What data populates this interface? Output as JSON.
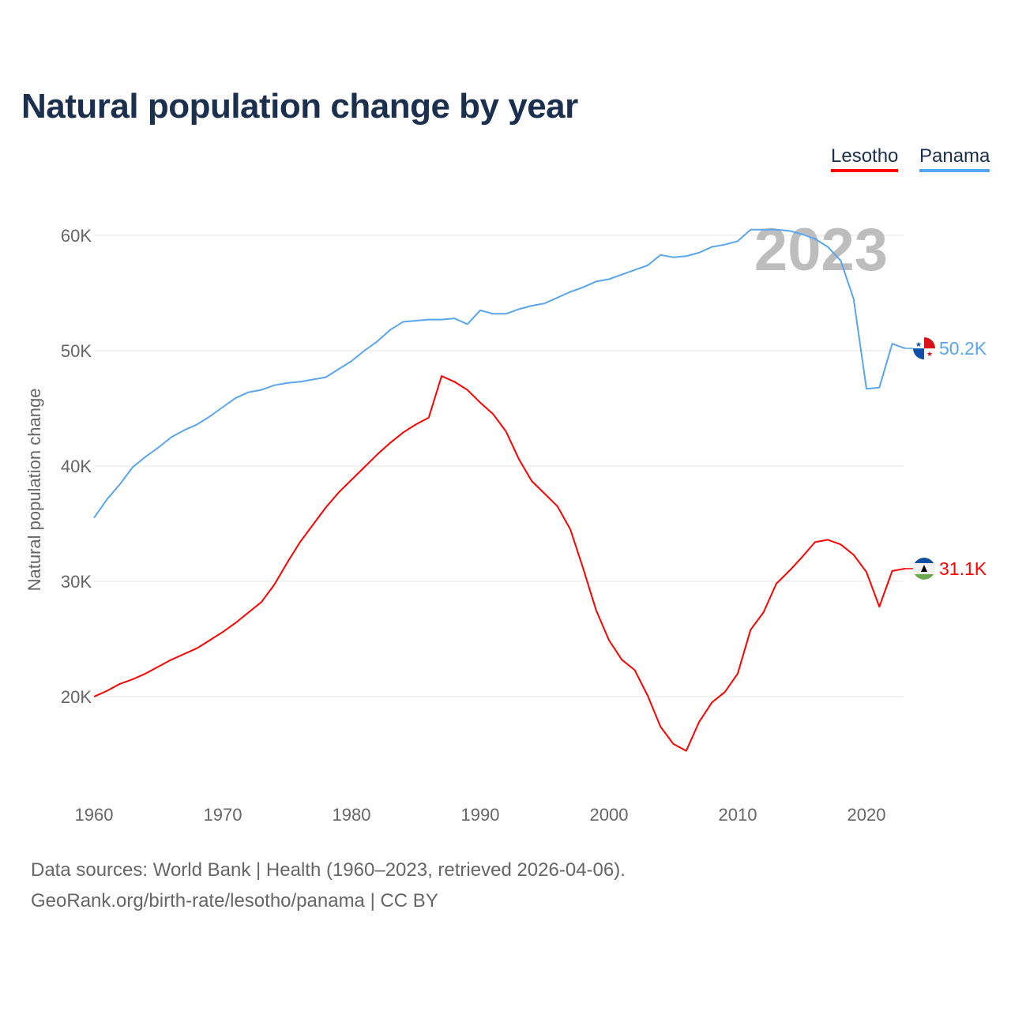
{
  "colors": {
    "Lesotho": "#ff0000",
    "Panama": "#5aa6ec",
    "title": "#1b2f4e"
  },
  "sources": {
    "line1": "Data sources: World Bank | Health (1960–2023, retrieved 2026-04-06).",
    "line2": "GeoRank.org/birth-rate/lesotho/panama | CC BY"
  },
  "chart_data": {
    "type": "line",
    "title": "Natural population change by year",
    "xlabel": "",
    "ylabel": "Natural population change",
    "year_watermark": "2023",
    "xlim": [
      1960,
      2023
    ],
    "ylim": [
      14000,
      62000
    ],
    "x_ticks": [
      1960,
      1970,
      1980,
      1990,
      2000,
      2010,
      2020
    ],
    "y_ticks": [
      {
        "v": 20000,
        "label": "20K"
      },
      {
        "v": 30000,
        "label": "30K"
      },
      {
        "v": 40000,
        "label": "40K"
      },
      {
        "v": 50000,
        "label": "50K"
      },
      {
        "v": 60000,
        "label": "60K"
      }
    ],
    "grid": true,
    "legend": "top-right",
    "x_start": 1960,
    "series": [
      {
        "name": "Lesotho",
        "end_label": "31.1K",
        "icon": "lesotho-flag-icon",
        "values": [
          20000,
          20500,
          21100,
          21500,
          22000,
          22600,
          23200,
          23700,
          24200,
          24900,
          25600,
          26400,
          27300,
          28200,
          29700,
          31600,
          33400,
          34900,
          36400,
          37700,
          38800,
          39900,
          41000,
          42000,
          42900,
          43600,
          44200,
          47800,
          47300,
          46600,
          45500,
          44500,
          43000,
          40600,
          38700,
          37600,
          36500,
          34500,
          31100,
          27500,
          24900,
          23200,
          22300,
          20100,
          17400,
          15900,
          15300,
          17800,
          19500,
          20400,
          22000,
          25800,
          27300,
          29800,
          30900,
          32100,
          33400,
          33600,
          33200,
          32300,
          30800,
          27800,
          30900,
          31100
        ]
      },
      {
        "name": "Panama",
        "end_label": "50.2K",
        "icon": "panama-flag-icon",
        "values": [
          35500,
          37100,
          38400,
          39900,
          40800,
          41600,
          42500,
          43100,
          43600,
          44300,
          45100,
          45900,
          46400,
          46600,
          47000,
          47200,
          47300,
          47500,
          47700,
          48400,
          49100,
          50000,
          50800,
          51800,
          52500,
          52600,
          52700,
          52700,
          52800,
          52300,
          53500,
          53200,
          53200,
          53600,
          53900,
          54100,
          54600,
          55100,
          55500,
          56000,
          56200,
          56600,
          57000,
          57400,
          58300,
          58100,
          58200,
          58500,
          59000,
          59200,
          59500,
          60500,
          60500,
          60500,
          60400,
          60100,
          59700,
          59000,
          57800,
          54500,
          46700,
          46800,
          50600,
          50200
        ]
      }
    ]
  }
}
